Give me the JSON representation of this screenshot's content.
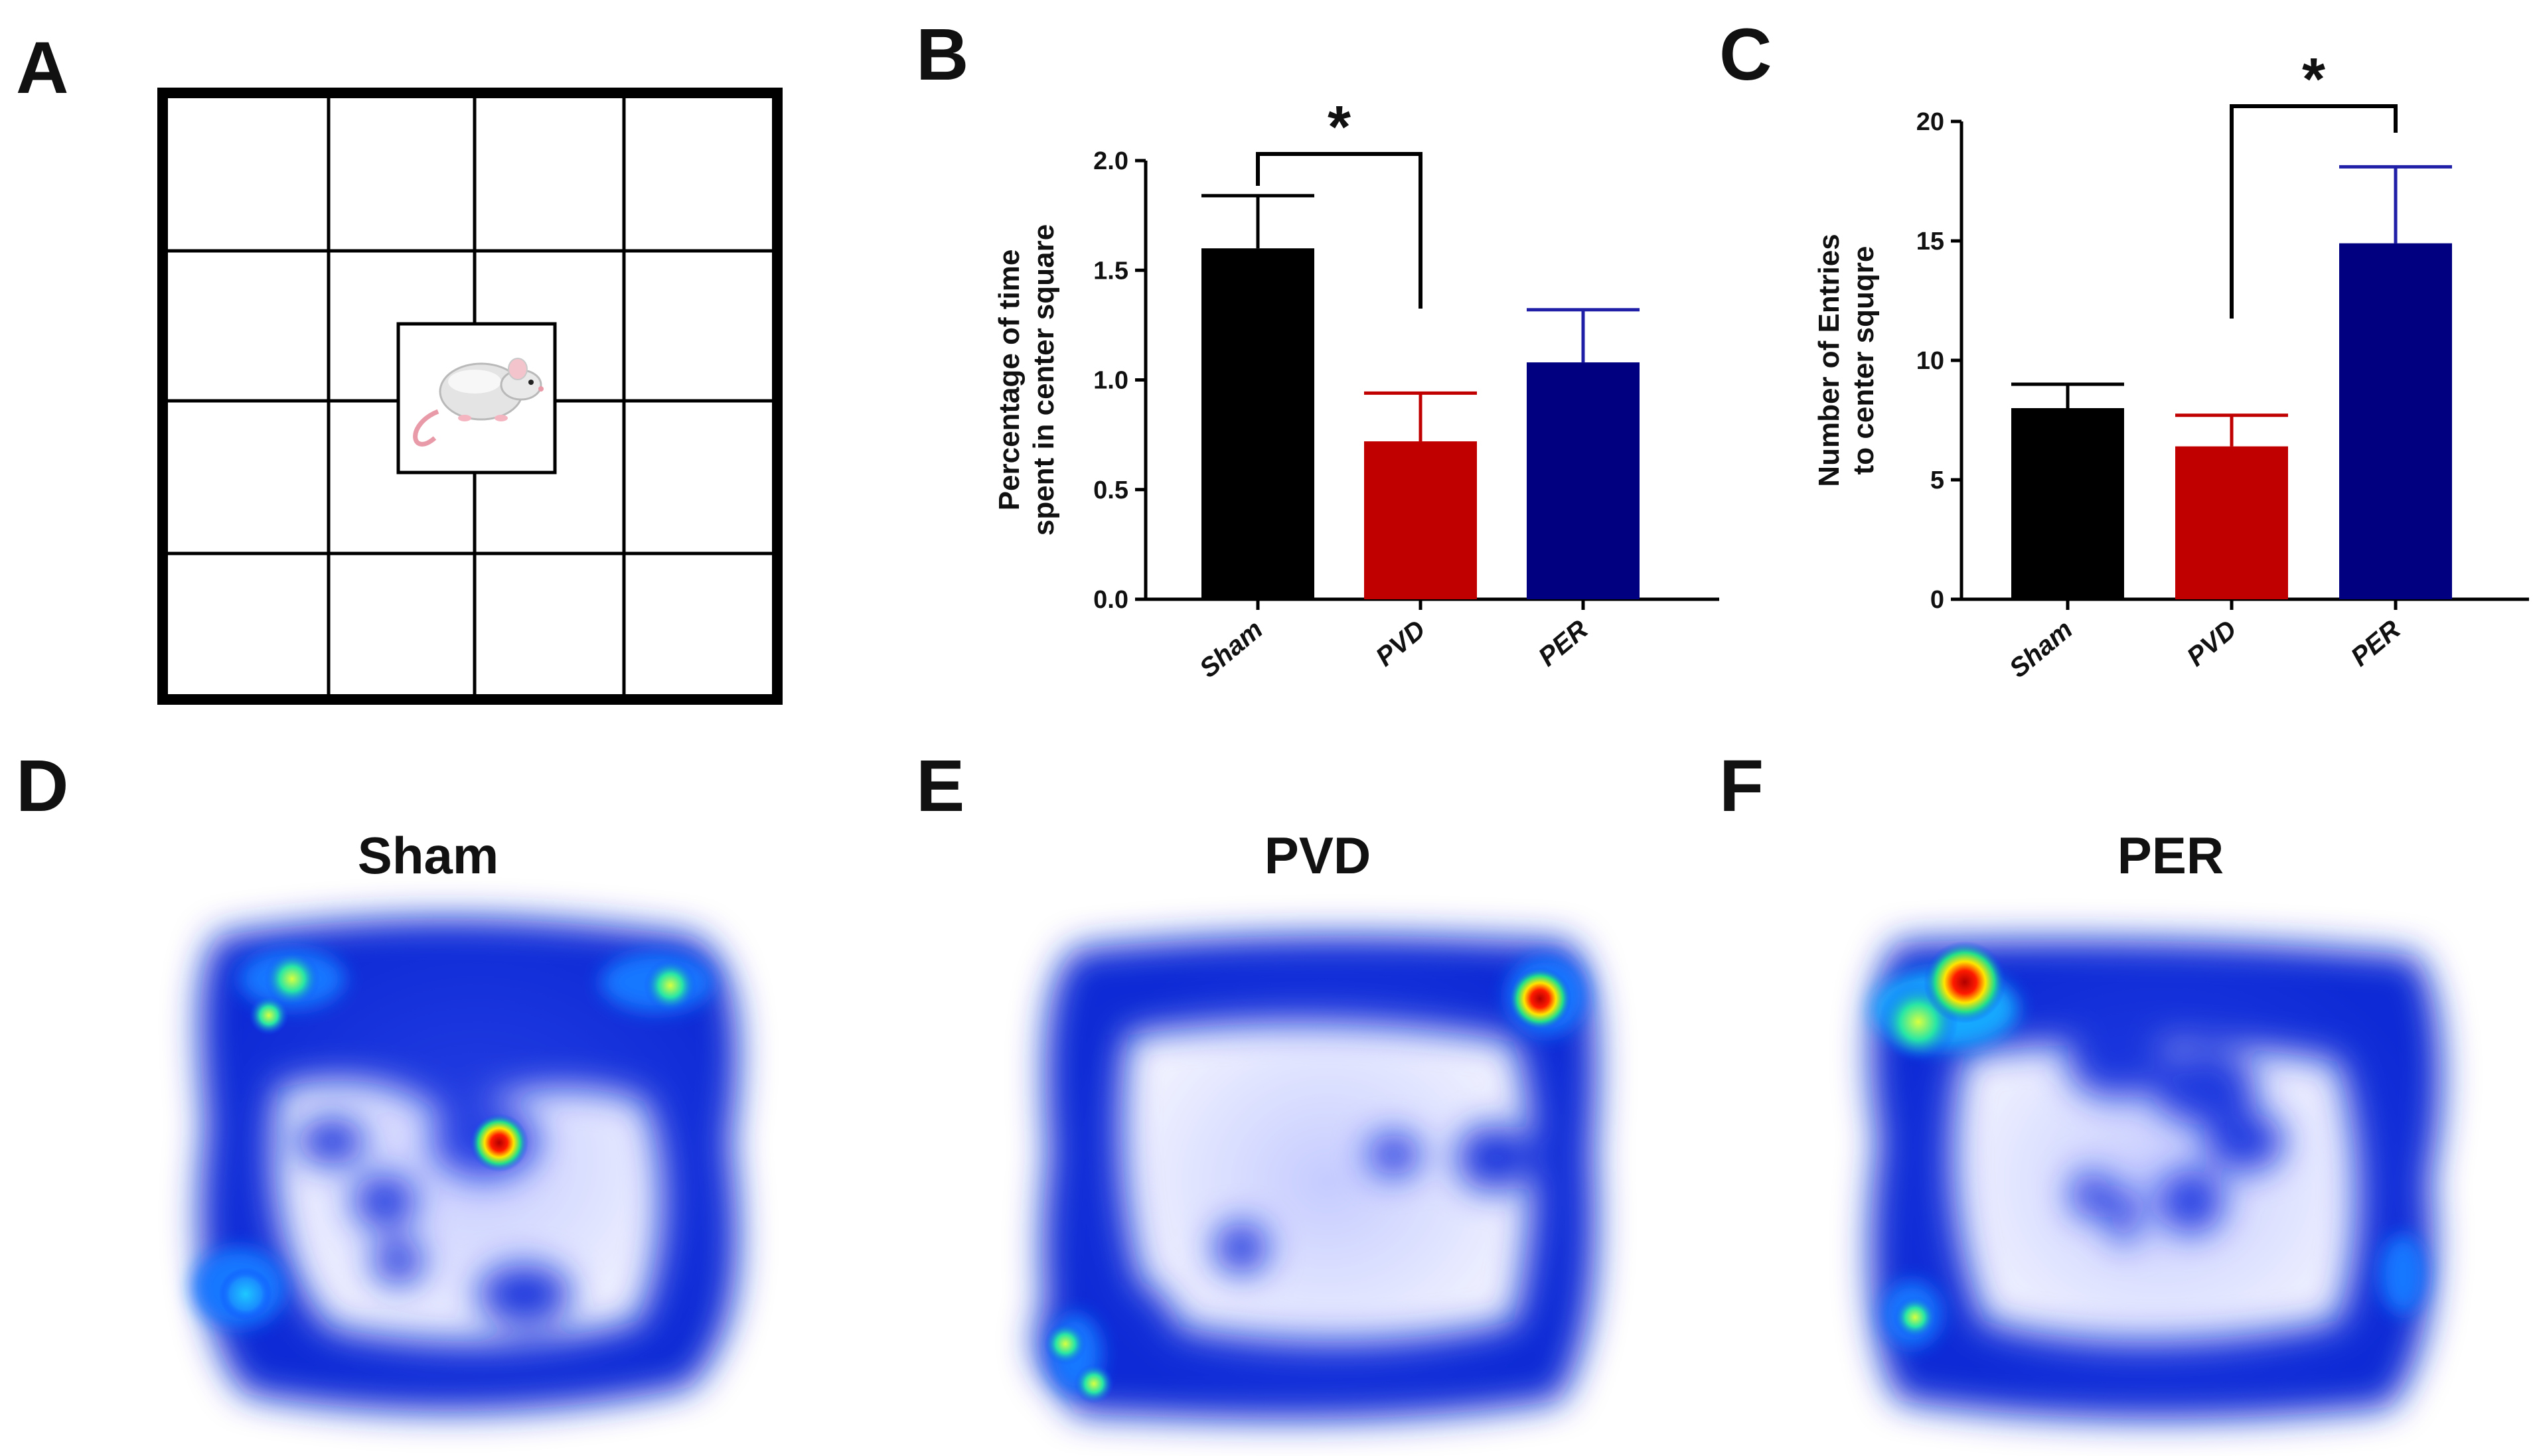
{
  "panels": {
    "A": "A",
    "B": "B",
    "C": "C",
    "D": "D",
    "E": "E",
    "F": "F"
  },
  "open_field": {
    "grid_rows": 4,
    "grid_cols": 4,
    "icon": "mouse-icon"
  },
  "chart_data": [
    {
      "panel": "B",
      "type": "bar",
      "categories": [
        "Sham",
        "PVD",
        "PER"
      ],
      "values": [
        1.6,
        0.72,
        1.08
      ],
      "errors": [
        0.24,
        0.22,
        0.24
      ],
      "colors": [
        "#000000",
        "#c00000",
        "#000080"
      ],
      "error_colors": [
        "#000000",
        "#c00000",
        "#1f1fa8"
      ],
      "ylabel_lines": [
        "Percentage of time",
        "spent in center square"
      ],
      "yticks": [
        "0.0",
        "0.5",
        "1.0",
        "1.5",
        "2.0"
      ],
      "ylim": [
        0,
        2.0
      ],
      "significance": {
        "from": "Sham",
        "to": "PVD",
        "label": "*"
      }
    },
    {
      "panel": "C",
      "type": "bar",
      "categories": [
        "Sham",
        "PVD",
        "PER"
      ],
      "values": [
        8.0,
        6.4,
        14.9
      ],
      "errors": [
        1.0,
        1.3,
        3.2
      ],
      "colors": [
        "#000000",
        "#c00000",
        "#000080"
      ],
      "error_colors": [
        "#000000",
        "#c00000",
        "#1f1fa8"
      ],
      "ylabel_lines": [
        "Number of Entries",
        "to center squqre"
      ],
      "yticks": [
        "0",
        "5",
        "10",
        "15",
        "20"
      ],
      "ylim": [
        0,
        20
      ],
      "significance": {
        "from": "PVD",
        "to": "PER",
        "label": "*"
      }
    }
  ],
  "heatmaps": [
    {
      "panel": "D",
      "title": "Sham"
    },
    {
      "panel": "E",
      "title": "PVD"
    },
    {
      "panel": "F",
      "title": "PER"
    }
  ]
}
